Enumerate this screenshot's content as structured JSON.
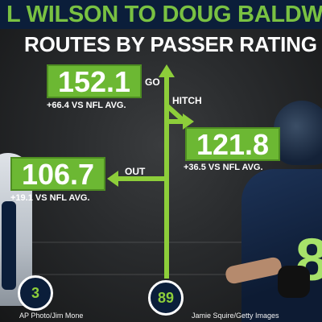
{
  "header": {
    "title": "L WILSON TO DOUG BALDW",
    "subtitle": "ROUTES BY PASSER RATING"
  },
  "routes": [
    {
      "name": "GO",
      "rating": "152.1",
      "vs_avg": "+66.4 VS NFL AVG."
    },
    {
      "name": "HITCH",
      "rating": "121.8",
      "vs_avg": "+36.5 VS NFL AVG."
    },
    {
      "name": "OUT",
      "rating": "106.7",
      "vs_avg": "+19.1 VS NFL AVG."
    }
  ],
  "players": {
    "qb_number": "3",
    "wr_number": "89",
    "jersey_number": "8"
  },
  "credits": {
    "left": "AP Photo/Jim Mone",
    "right": "Jamie Squire/Getty Images"
  },
  "colors": {
    "accent_green": "#6cb833",
    "navy": "#0b1e3a"
  }
}
